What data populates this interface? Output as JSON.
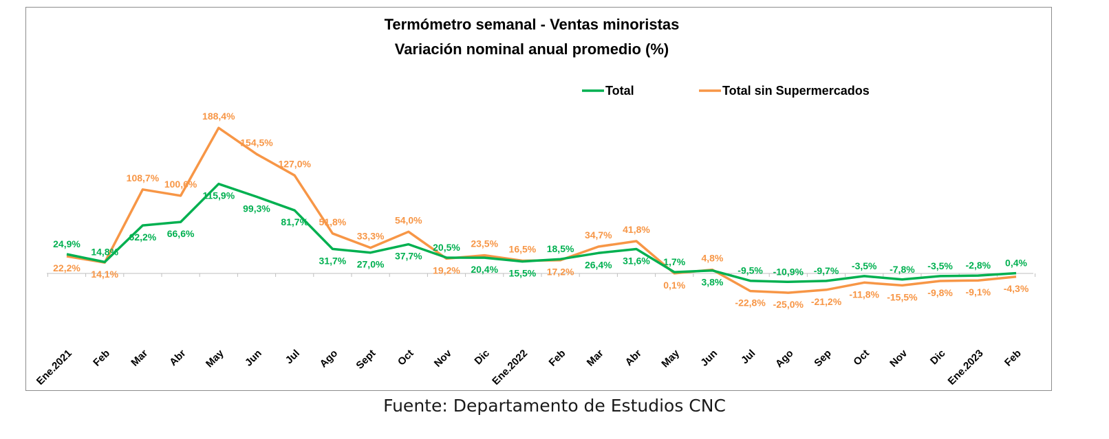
{
  "chart_data": {
    "type": "line",
    "title": "Termómetro semanal - Ventas minoristas",
    "subtitle": "Variación nominal anual promedio (%)",
    "categories": [
      "Ene.2021",
      "Feb",
      "Mar",
      "Abr",
      "May",
      "Jun",
      "Jul",
      "Ago",
      "Sept",
      "Oct",
      "Nov",
      "Dic",
      "Ene.2022",
      "Feb",
      "Mar",
      "Abr",
      "May",
      "Jun",
      "Jul",
      "Ago",
      "Sep",
      "Oct",
      "Nov",
      "Dic",
      "Ene.2023",
      "Feb"
    ],
    "series": [
      {
        "name": "Total",
        "color": "#00b050",
        "values": [
          24.9,
          14.8,
          62.2,
          66.6,
          115.9,
          99.3,
          81.7,
          31.7,
          27.0,
          37.7,
          20.5,
          20.4,
          15.5,
          18.5,
          26.4,
          31.6,
          1.7,
          3.8,
          -9.5,
          -10.9,
          -9.7,
          -3.5,
          -7.8,
          -3.5,
          -2.8,
          0.4
        ],
        "labels": [
          "24,9%",
          "14,8%",
          "62,2%",
          "66,6%",
          "115,9%",
          "99,3%",
          "81,7%",
          "31,7%",
          "27,0%",
          "37,7%",
          "20,5%",
          "20,4%",
          "15,5%",
          "18,5%",
          "26,4%",
          "31,6%",
          "1,7%",
          "3,8%",
          "-9,5%",
          "-10,9%",
          "-9,7%",
          "-3,5%",
          "-7,8%",
          "-3,5%",
          "-2,8%",
          "0,4%"
        ]
      },
      {
        "name": "Total sin Supermercados",
        "color": "#f79646",
        "values": [
          22.2,
          14.1,
          108.7,
          100.6,
          188.4,
          154.5,
          127.0,
          51.8,
          33.3,
          54.0,
          19.2,
          23.5,
          16.5,
          17.2,
          34.7,
          41.8,
          0.1,
          4.8,
          -22.8,
          -25.0,
          -21.2,
          -11.8,
          -15.5,
          -9.8,
          -9.1,
          -4.3
        ],
        "labels": [
          "22,2%",
          "14,1%",
          "108,7%",
          "100,6%",
          "188,4%",
          "154,5%",
          "127,0%",
          "51,8%",
          "33,3%",
          "54,0%",
          "19,2%",
          "23,5%",
          "16,5%",
          "17,2%",
          "34,7%",
          "41,8%",
          "0,1%",
          "4,8%",
          "-22,8%",
          "-25,0%",
          "-21,2%",
          "-11,8%",
          "-15,5%",
          "-9,8%",
          "-9,1%",
          "-4,3%"
        ]
      }
    ],
    "legend": "top-right",
    "grid": false
  },
  "footer": {
    "source": "Fuente: Departamento de Estudios CNC"
  }
}
